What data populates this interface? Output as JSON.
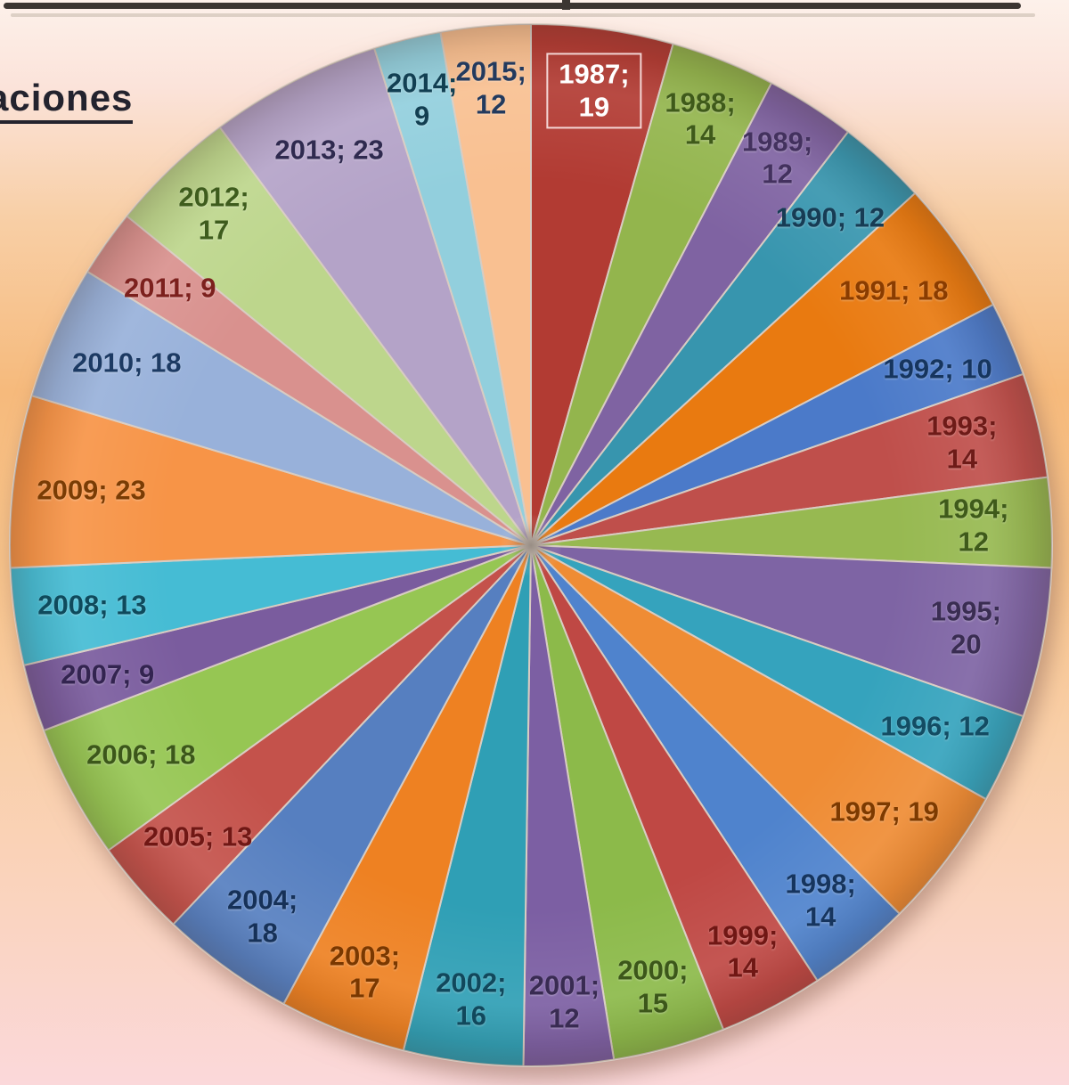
{
  "page": {
    "partial_heading": "aciones",
    "frame_line_color": "#3b3531",
    "background_top": "#fdf1ea",
    "background_middle": "#f6ba7c",
    "background_bottom": "#fbd8da"
  },
  "chart_data": {
    "type": "pie",
    "title_visible_fragment": "aciones",
    "start_angle_deg": 0,
    "direction": "clockwise",
    "legend": "none",
    "label_format": "year; value",
    "total": 432,
    "slices": [
      {
        "year": "1987",
        "value": 19,
        "color": "#b23b33",
        "label_color": "#ffffff",
        "two_line": true,
        "highlighted": true
      },
      {
        "year": "1988",
        "value": 14,
        "color": "#93b54d",
        "label_color": "#3f5a1a",
        "two_line": true,
        "highlighted": false
      },
      {
        "year": "1989",
        "value": 12,
        "color": "#7f63a2",
        "label_color": "#43315e",
        "two_line": true,
        "highlighted": false
      },
      {
        "year": "1990",
        "value": 12,
        "color": "#3795ae",
        "label_color": "#173c54",
        "two_line": false,
        "highlighted": false
      },
      {
        "year": "1991",
        "value": 18,
        "color": "#e97a10",
        "label_color": "#8a3c00",
        "two_line": false,
        "highlighted": false
      },
      {
        "year": "1992",
        "value": 10,
        "color": "#4b7ac9",
        "label_color": "#16355e",
        "two_line": false,
        "highlighted": false
      },
      {
        "year": "1993",
        "value": 14,
        "color": "#bf4f4b",
        "label_color": "#6e1b18",
        "two_line": false,
        "highlighted": false
      },
      {
        "year": "1994",
        "value": 12,
        "color": "#97b951",
        "label_color": "#3f5a1a",
        "two_line": false,
        "highlighted": false
      },
      {
        "year": "1995",
        "value": 20,
        "color": "#7e64a4",
        "label_color": "#3a2d52",
        "two_line": false,
        "highlighted": false
      },
      {
        "year": "1996",
        "value": 12,
        "color": "#35a3bd",
        "label_color": "#134c63",
        "two_line": false,
        "highlighted": false
      },
      {
        "year": "1997",
        "value": 19,
        "color": "#ef8c34",
        "label_color": "#7d3a00",
        "two_line": false,
        "highlighted": false
      },
      {
        "year": "1998",
        "value": 14,
        "color": "#4f83cd",
        "label_color": "#16355e",
        "two_line": true,
        "highlighted": false
      },
      {
        "year": "1999",
        "value": 14,
        "color": "#bf4844",
        "label_color": "#701714",
        "two_line": true,
        "highlighted": false
      },
      {
        "year": "2000",
        "value": 15,
        "color": "#8cba4a",
        "label_color": "#3c571a",
        "two_line": true,
        "highlighted": false
      },
      {
        "year": "2001",
        "value": 12,
        "color": "#7c5fa3",
        "label_color": "#392b52",
        "two_line": true,
        "highlighted": false
      },
      {
        "year": "2002",
        "value": 16,
        "color": "#2f9fb5",
        "label_color": "#11485c",
        "two_line": true,
        "highlighted": false
      },
      {
        "year": "2003",
        "value": 17,
        "color": "#ee8122",
        "label_color": "#7a3800",
        "two_line": true,
        "highlighted": false
      },
      {
        "year": "2004",
        "value": 18,
        "color": "#567fc0",
        "label_color": "#163158",
        "two_line": true,
        "highlighted": false
      },
      {
        "year": "2005",
        "value": 13,
        "color": "#c4524b",
        "label_color": "#701714",
        "two_line": false,
        "highlighted": false
      },
      {
        "year": "2006",
        "value": 18,
        "color": "#96c653",
        "label_color": "#3c571a",
        "two_line": false,
        "highlighted": false
      },
      {
        "year": "2007",
        "value": 9,
        "color": "#7a5c9e",
        "label_color": "#332450",
        "two_line": false,
        "highlighted": false
      },
      {
        "year": "2008",
        "value": 13,
        "color": "#45bcd4",
        "label_color": "#0f4a5c",
        "two_line": false,
        "highlighted": false
      },
      {
        "year": "2009",
        "value": 23,
        "color": "#f79447",
        "label_color": "#7a3c04",
        "two_line": false,
        "highlighted": false
      },
      {
        "year": "2010",
        "value": 18,
        "color": "#98b1da",
        "label_color": "#1c3a63",
        "two_line": false,
        "highlighted": false
      },
      {
        "year": "2011",
        "value": 9,
        "color": "#d9918e",
        "label_color": "#7c201d",
        "two_line": false,
        "highlighted": false
      },
      {
        "year": "2012",
        "value": 17,
        "color": "#bdd68c",
        "label_color": "#3e5c1d",
        "two_line": true,
        "highlighted": false
      },
      {
        "year": "2013",
        "value": 23,
        "color": "#b4a3c8",
        "label_color": "#2f2a4f",
        "two_line": false,
        "highlighted": false
      },
      {
        "year": "2014",
        "value": 9,
        "color": "#92cfdd",
        "label_color": "#123f52",
        "two_line": true,
        "highlighted": false
      },
      {
        "year": "2015",
        "value": 12,
        "color": "#f9c091",
        "label_color": "#233a5e",
        "two_line": true,
        "highlighted": false
      }
    ]
  }
}
